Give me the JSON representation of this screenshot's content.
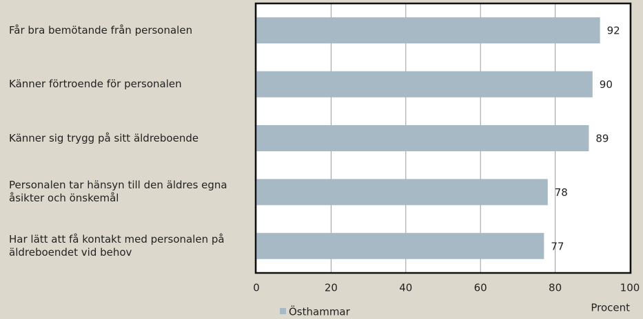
{
  "chart_data": {
    "type": "bar",
    "orientation": "horizontal",
    "categories": [
      "Får bra bemötande från personalen",
      "Känner förtroende för personalen",
      "Känner sig trygg på sitt äldreboende",
      "Personalen tar hänsyn till den äldres egna åsikter och önskemål",
      "Har lätt att få kontakt med personalen på äldreboendet vid behov"
    ],
    "series": [
      {
        "name": "Östhammar",
        "color": "#a6b9c4",
        "values": [
          92,
          90,
          89,
          78,
          77
        ]
      }
    ],
    "xlim": [
      0,
      100
    ],
    "xticks": [
      0,
      20,
      40,
      60,
      80,
      100
    ],
    "grid": true,
    "x_label": "Procent",
    "legend": "bottom"
  }
}
